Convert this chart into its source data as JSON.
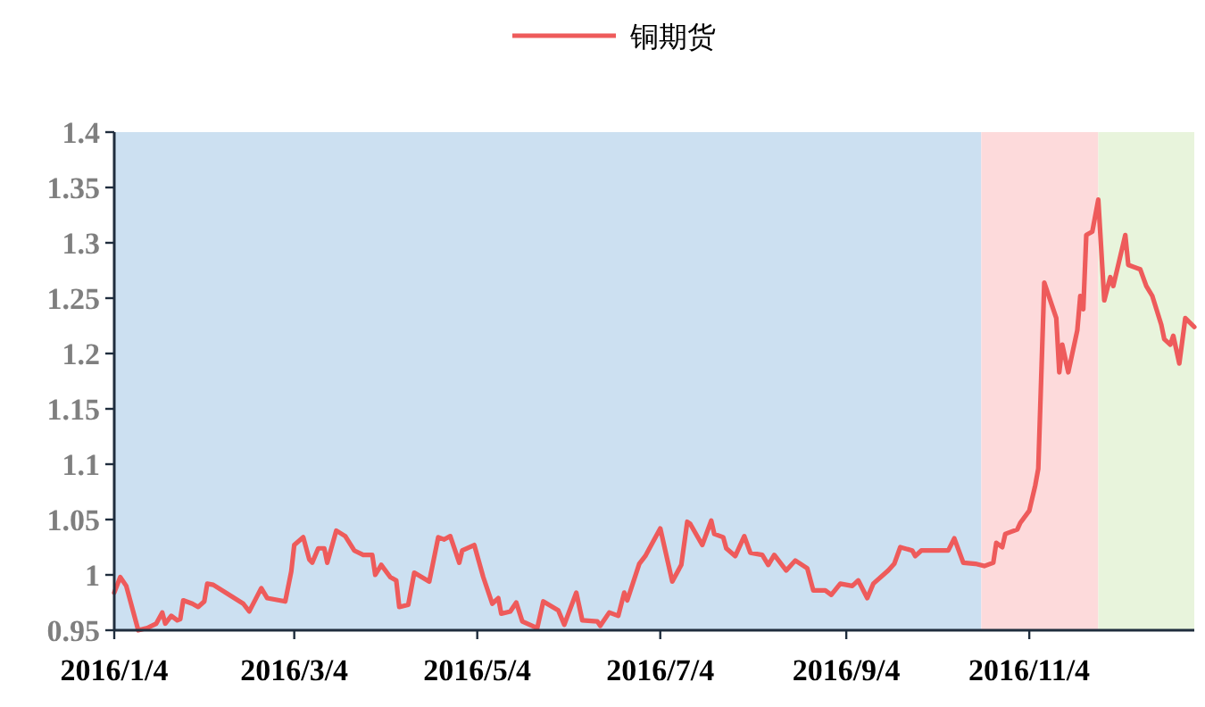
{
  "chart_data": {
    "type": "line",
    "legend": "top",
    "grid": false,
    "marker": "none",
    "line_style": "solid",
    "x": [
      "2016-01-04",
      "2016-01-06",
      "2016-01-08",
      "2016-01-12",
      "2016-01-15",
      "2016-01-18",
      "2016-01-20",
      "2016-01-21",
      "2016-01-23",
      "2016-01-25",
      "2016-01-26",
      "2016-01-27",
      "2016-01-30",
      "2016-02-01",
      "2016-02-03",
      "2016-02-04",
      "2016-02-06",
      "2016-02-16",
      "2016-02-18",
      "2016-02-22",
      "2016-02-24",
      "2016-03-01",
      "2016-03-03",
      "2016-03-04",
      "2016-03-07",
      "2016-03-09",
      "2016-03-10",
      "2016-03-12",
      "2016-03-14",
      "2016-03-15",
      "2016-03-18",
      "2016-03-21",
      "2016-03-24",
      "2016-03-27",
      "2016-03-30",
      "2016-03-31",
      "2016-04-02",
      "2016-04-05",
      "2016-04-07",
      "2016-04-08",
      "2016-04-11",
      "2016-04-13",
      "2016-04-18",
      "2016-04-21",
      "2016-04-23",
      "2016-04-25",
      "2016-04-28",
      "2016-04-29",
      "2016-05-03",
      "2016-05-06",
      "2016-05-09",
      "2016-05-11",
      "2016-05-12",
      "2016-05-15",
      "2016-05-17",
      "2016-05-19",
      "2016-05-24",
      "2016-05-26",
      "2016-05-31",
      "2016-06-02",
      "2016-06-06",
      "2016-06-08",
      "2016-06-13",
      "2016-06-14",
      "2016-06-17",
      "2016-06-20",
      "2016-06-22",
      "2016-06-23",
      "2016-06-27",
      "2016-06-29",
      "2016-07-01",
      "2016-07-04",
      "2016-07-08",
      "2016-07-11",
      "2016-07-13",
      "2016-07-14",
      "2016-07-18",
      "2016-07-21",
      "2016-07-22",
      "2016-07-25",
      "2016-07-26",
      "2016-07-29",
      "2016-08-01",
      "2016-08-03",
      "2016-08-07",
      "2016-08-09",
      "2016-08-11",
      "2016-08-15",
      "2016-08-18",
      "2016-08-22",
      "2016-08-24",
      "2016-08-28",
      "2016-08-30",
      "2016-09-02",
      "2016-09-06",
      "2016-09-08",
      "2016-09-11",
      "2016-09-13",
      "2016-09-18",
      "2016-09-20",
      "2016-09-22",
      "2016-09-26",
      "2016-09-27",
      "2016-09-29",
      "2016-10-08",
      "2016-10-10",
      "2016-10-13",
      "2016-10-17",
      "2016-10-20",
      "2016-10-23",
      "2016-10-24",
      "2016-10-26",
      "2016-10-27",
      "2016-10-31",
      "2016-11-01",
      "2016-11-04",
      "2016-11-06",
      "2016-11-07",
      "2016-11-09",
      "2016-11-13",
      "2016-11-14",
      "2016-11-15",
      "2016-11-17",
      "2016-11-20",
      "2016-11-21",
      "2016-11-22",
      "2016-11-23",
      "2016-11-25",
      "2016-11-27",
      "2016-11-29",
      "2016-12-01",
      "2016-12-02",
      "2016-12-06",
      "2016-12-07",
      "2016-12-11",
      "2016-12-13",
      "2016-12-15",
      "2016-12-18",
      "2016-12-19",
      "2016-12-21",
      "2016-12-22",
      "2016-12-24",
      "2016-12-26",
      "2016-12-29"
    ],
    "series": [
      {
        "name": "铜期货",
        "color": "#ee5b5b",
        "values": [
          0.984,
          0.998,
          0.99,
          0.95,
          0.952,
          0.956,
          0.966,
          0.956,
          0.963,
          0.959,
          0.96,
          0.977,
          0.974,
          0.971,
          0.976,
          0.992,
          0.991,
          0.974,
          0.967,
          0.988,
          0.979,
          0.976,
          1.003,
          1.027,
          1.034,
          1.014,
          1.011,
          1.024,
          1.024,
          1.011,
          1.04,
          1.035,
          1.022,
          1.018,
          1.018,
          1.0,
          1.009,
          0.998,
          0.995,
          0.971,
          0.973,
          1.002,
          0.994,
          1.034,
          1.032,
          1.035,
          1.011,
          1.022,
          1.027,
          0.998,
          0.974,
          0.979,
          0.965,
          0.967,
          0.975,
          0.958,
          0.952,
          0.976,
          0.968,
          0.955,
          0.984,
          0.959,
          0.958,
          0.954,
          0.966,
          0.963,
          0.984,
          0.977,
          1.01,
          1.017,
          1.027,
          1.042,
          0.994,
          1.009,
          1.048,
          1.046,
          1.027,
          1.049,
          1.037,
          1.034,
          1.024,
          1.017,
          1.035,
          1.02,
          1.018,
          1.009,
          1.018,
          1.004,
          1.013,
          1.006,
          0.986,
          0.986,
          0.982,
          0.992,
          0.99,
          0.995,
          0.979,
          0.992,
          1.004,
          1.01,
          1.025,
          1.022,
          1.017,
          1.022,
          1.022,
          1.033,
          1.011,
          1.01,
          1.008,
          1.011,
          1.029,
          1.025,
          1.037,
          1.041,
          1.047,
          1.058,
          1.081,
          1.096,
          1.264,
          1.232,
          1.183,
          1.208,
          1.183,
          1.221,
          1.252,
          1.24,
          1.307,
          1.31,
          1.339,
          1.248,
          1.269,
          1.261,
          1.307,
          1.28,
          1.276,
          1.261,
          1.252,
          1.226,
          1.213,
          1.208,
          1.216,
          1.191,
          1.232,
          1.224
        ]
      }
    ],
    "xlim": [
      "2016-01-04",
      "2016-12-29"
    ],
    "xticks": [
      {
        "value": "2016-01-04",
        "label": "2016/1/4"
      },
      {
        "value": "2016-03-04",
        "label": "2016/3/4"
      },
      {
        "value": "2016-05-04",
        "label": "2016/5/4"
      },
      {
        "value": "2016-07-04",
        "label": "2016/7/4"
      },
      {
        "value": "2016-09-04",
        "label": "2016/9/4"
      },
      {
        "value": "2016-11-04",
        "label": "2016/11/4"
      }
    ],
    "ylim": [
      0.95,
      1.4
    ],
    "yticks": [
      0.95,
      1,
      1.05,
      1.1,
      1.15,
      1.2,
      1.25,
      1.3,
      1.35,
      1.4
    ],
    "bands": [
      {
        "axis": "x",
        "from": "2016-01-04",
        "to": "2016-10-19",
        "color": "#cce0f1"
      },
      {
        "axis": "x",
        "from": "2016-10-19",
        "to": "2016-11-27",
        "color": "#fddadb"
      },
      {
        "axis": "x",
        "from": "2016-11-27",
        "to": "2016-12-29",
        "color": "#e8f4dc"
      }
    ]
  }
}
